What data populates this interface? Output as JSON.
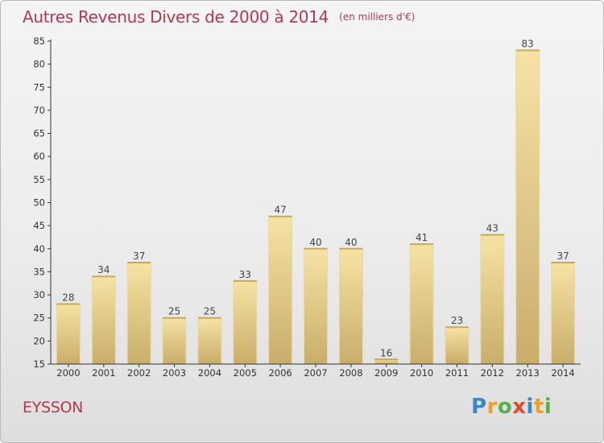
{
  "title": "Autres Revenus Divers de 2000 à 2014",
  "unit_note": "(en milliers d'€)",
  "commune": "EYSSON",
  "logo": {
    "text": "Proxiti",
    "letters": [
      "P",
      "r",
      "o",
      "x",
      "i",
      "t",
      "i"
    ]
  },
  "colors": {
    "title": "#b23a4c",
    "bar_top": "#f6e3a4",
    "bar_bottom": "#c9ad6a",
    "axis": "#333333"
  },
  "chart_data": {
    "type": "bar",
    "title": "Autres Revenus Divers de 2000 à 2014",
    "xlabel": "",
    "ylabel": "",
    "categories": [
      "2000",
      "2001",
      "2002",
      "2003",
      "2004",
      "2005",
      "2006",
      "2007",
      "2008",
      "2009",
      "2010",
      "2011",
      "2012",
      "2013",
      "2014"
    ],
    "values": [
      28,
      34,
      37,
      25,
      25,
      33,
      47,
      40,
      40,
      16,
      41,
      23,
      43,
      83,
      37
    ],
    "ylim": [
      15,
      85
    ],
    "yticks": [
      15,
      20,
      25,
      30,
      35,
      40,
      45,
      50,
      55,
      60,
      65,
      70,
      75,
      80,
      85
    ],
    "grid": false,
    "data_labels": true
  }
}
